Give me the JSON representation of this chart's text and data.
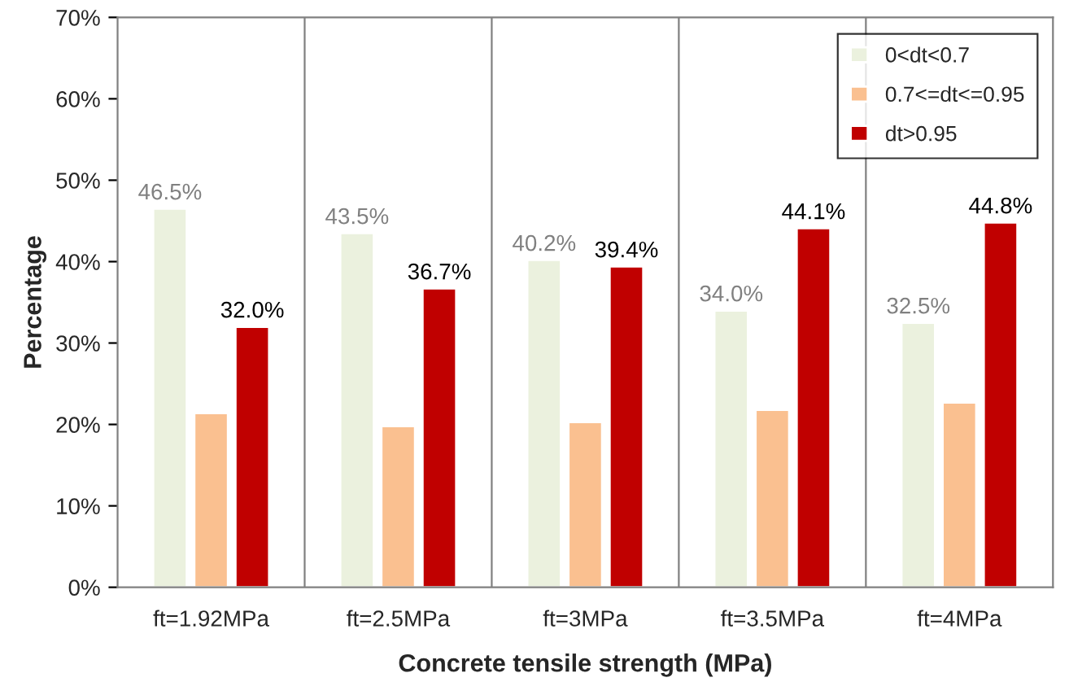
{
  "chart_data": {
    "type": "bar",
    "xlabel": "Concrete tensile strength (MPa)",
    "ylabel": "Percentage",
    "categories": [
      "ft=1.92MPa",
      "ft=2.5MPa",
      "ft=3MPa",
      "ft=3.5MPa",
      "ft=4MPa"
    ],
    "series": [
      {
        "name": "0<dt<0.7",
        "color": "#ebf1de",
        "values": [
          46.5,
          43.5,
          40.2,
          34.0,
          32.5
        ],
        "value_labels": [
          "46.5%",
          "43.5%",
          "40.2%",
          "34.0%",
          "32.5%"
        ]
      },
      {
        "name": "0.7<=dt<=0.95",
        "color": "#fac090",
        "values": [
          21.4,
          19.8,
          20.3,
          21.8,
          22.7
        ]
      },
      {
        "name": "dt>0.95",
        "color": "#c00000",
        "values": [
          32.0,
          36.7,
          39.4,
          44.1,
          44.8
        ],
        "value_labels": [
          "32.0%",
          "36.7%",
          "39.4%",
          "44.1%",
          "44.8%"
        ]
      }
    ],
    "ylim": [
      0,
      70
    ],
    "yticks": [
      {
        "value": 0,
        "label": "0%"
      },
      {
        "value": 10,
        "label": "10%"
      },
      {
        "value": 20,
        "label": "20%"
      },
      {
        "value": 30,
        "label": "30%"
      },
      {
        "value": 40,
        "label": "40%"
      },
      {
        "value": 50,
        "label": "50%"
      },
      {
        "value": 60,
        "label": "60%"
      },
      {
        "value": 70,
        "label": "70%"
      }
    ],
    "legend": "top right",
    "grid": false
  }
}
